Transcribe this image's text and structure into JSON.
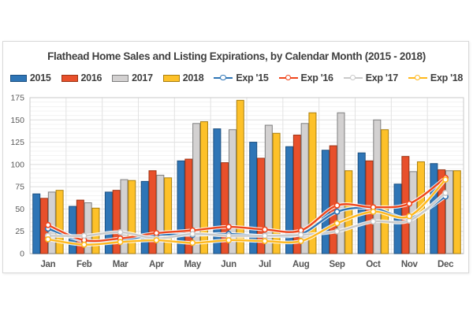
{
  "chart_data": {
    "type": "combo-bar-line",
    "title": "Flathead Home Sales and Listing Expirations, by Calendar Month (2015 - 2018)",
    "categories": [
      "Jan",
      "Feb",
      "Mar",
      "Apr",
      "May",
      "Jun",
      "Jul",
      "Aug",
      "Sep",
      "Oct",
      "Nov",
      "Dec"
    ],
    "bar_series": [
      {
        "name": "2015",
        "color": "#2E75B6",
        "border": "#1D5080",
        "values": [
          67,
          53,
          69,
          81,
          104,
          140,
          125,
          120,
          116,
          113,
          78,
          101
        ]
      },
      {
        "name": "2016",
        "color": "#E8502B",
        "border": "#9C3415",
        "values": [
          62,
          60,
          71,
          93,
          106,
          102,
          107,
          133,
          121,
          104,
          109,
          94
        ]
      },
      {
        "name": "2017",
        "color": "#D3D1D1",
        "border": "#7F7F7F",
        "values": [
          69,
          57,
          83,
          88,
          146,
          139,
          144,
          146,
          158,
          150,
          92,
          93
        ]
      },
      {
        "name": "2018",
        "color": "#FDC129",
        "border": "#A97F10",
        "values": [
          71,
          51,
          82,
          85,
          148,
          172,
          135,
          158,
          93,
          139,
          103,
          93
        ]
      }
    ],
    "line_series": [
      {
        "name": "Exp '15",
        "color": "#2E75B6",
        "values": [
          28,
          14,
          15,
          21,
          21,
          22,
          20,
          22,
          47,
          51,
          40,
          64
        ]
      },
      {
        "name": "Exp '16",
        "color": "#F0461C",
        "values": [
          32,
          15,
          17,
          23,
          26,
          30,
          27,
          26,
          54,
          52,
          56,
          85
        ]
      },
      {
        "name": "Exp '17",
        "color": "#C9C9C9",
        "values": [
          20,
          20,
          24,
          17,
          22,
          20,
          20,
          21,
          25,
          36,
          37,
          68
        ]
      },
      {
        "name": "Exp '18",
        "color": "#FFB81C",
        "values": [
          16,
          10,
          13,
          15,
          12,
          15,
          14,
          14,
          34,
          47,
          42,
          83
        ]
      }
    ],
    "ylim": [
      0,
      175
    ],
    "yticks": [
      0,
      25,
      50,
      75,
      100,
      125,
      150,
      175
    ],
    "ytick_step": 25,
    "minor_step": 5,
    "grid": true,
    "legend_position": "top",
    "xlabel": "",
    "ylabel": ""
  }
}
